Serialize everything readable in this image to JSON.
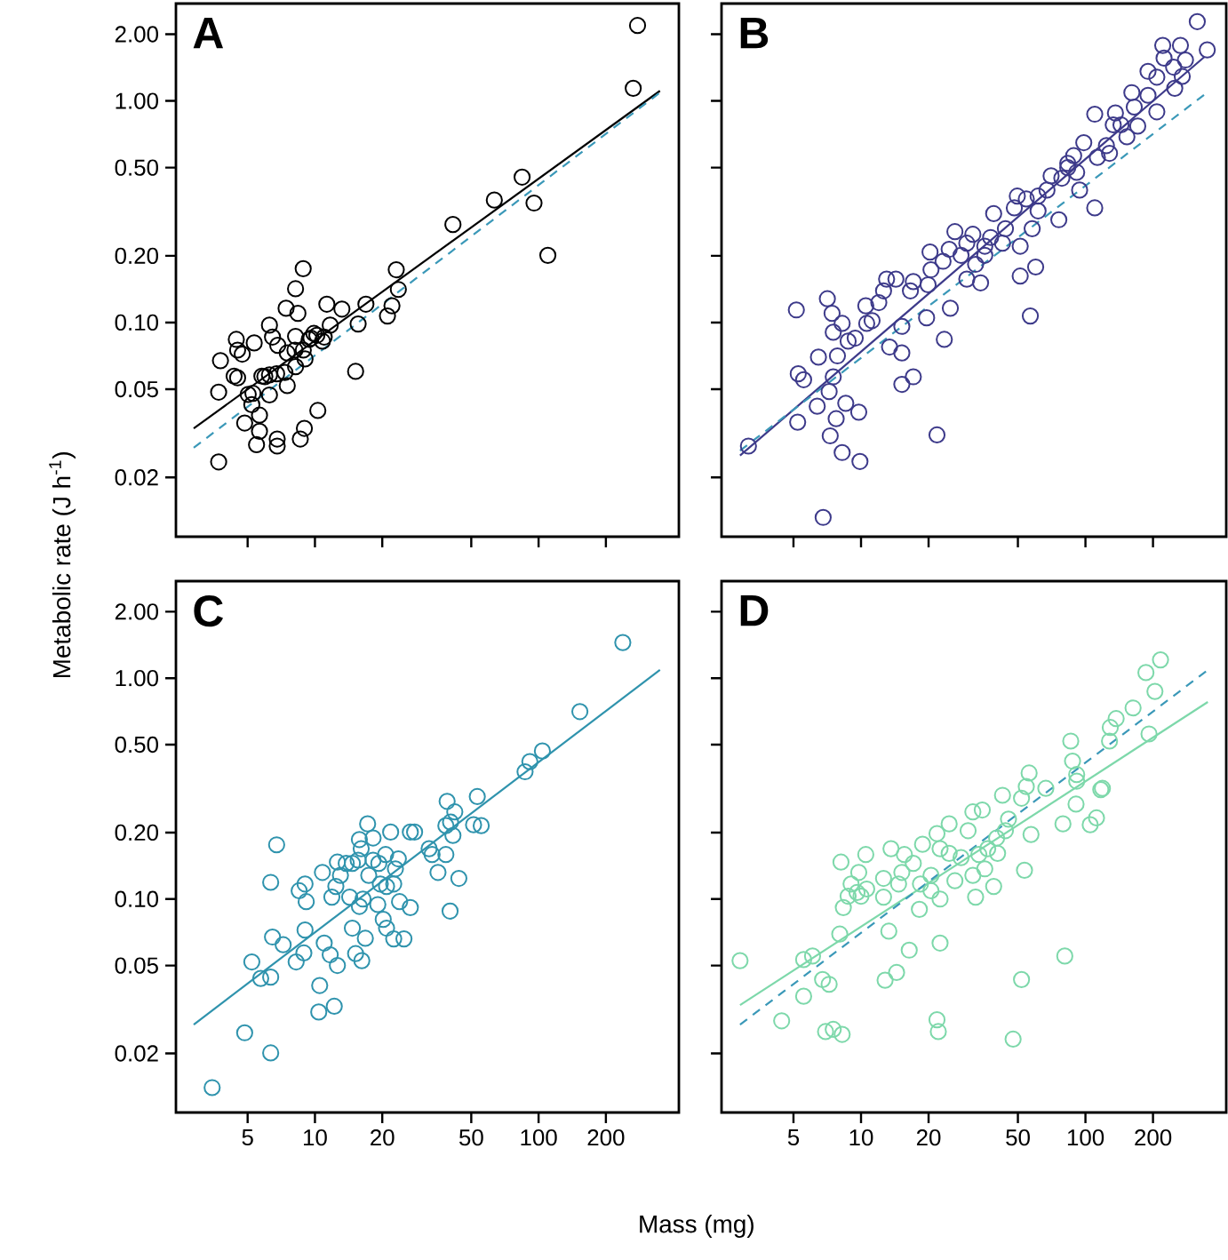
{
  "chart_data": [
    {
      "type": "scatter",
      "title": "A",
      "ylabel": "Metabolic rate (J h$^{-1}$)",
      "log": "xy",
      "marker": "circle",
      "tick_labels": "y",
      "xlim": [
        2.39,
        424
      ],
      "ylim": [
        0.0108,
        2.75
      ],
      "xticks": [
        5,
        10,
        20,
        50,
        100,
        200
      ],
      "yticks": [
        {
          "value": 2,
          "label": "2.00"
        },
        {
          "value": 1,
          "label": "1.00"
        },
        {
          "value": 0.5,
          "label": "0.50"
        },
        {
          "value": 0.2,
          "label": "0.20"
        },
        {
          "value": 0.1,
          "label": "0.10"
        },
        {
          "value": 0.05,
          "label": "0.05"
        },
        {
          "value": 0.02,
          "label": "0.02"
        }
      ],
      "series": [
        {
          "color": "#000000",
          "x": [
            277,
            265,
            84.4,
            63.4,
            95.4,
            110,
            41.4,
            23.1,
            23.6,
            22.1,
            21.1,
            16.9,
            15.6,
            13.2,
            11.3,
            8.86,
            8.19,
            7.43,
            8.39,
            11.7,
            11,
            9.89,
            9.6,
            9.03,
            8.19,
            8.14,
            6.82,
            6.26,
            6.46,
            5.35,
            4.45,
            4.51,
            4.73,
            3.78,
            4.35,
            4.51,
            5.79,
            6.26,
            6.74,
            7.34,
            8.19,
            7.52,
            6.26,
            5.28,
            3.71,
            5.22,
            5.65,
            4.85,
            5.65,
            8.97,
            10.3,
            8.6,
            6.78,
            6.78,
            5.48,
            3.71,
            15.2,
            10.8,
            10.2,
            9.42,
            7.52,
            8.87,
            5.97,
            5.03
          ],
          "values": [
            2.19,
            1.14,
            0.453,
            0.357,
            0.346,
            0.201,
            0.277,
            0.173,
            0.141,
            0.119,
            0.107,
            0.121,
            0.0985,
            0.115,
            0.121,
            0.175,
            0.142,
            0.116,
            0.11,
            0.0973,
            0.086,
            0.0893,
            0.085,
            0.0685,
            0.0866,
            0.0751,
            0.0789,
            0.0973,
            0.086,
            0.0809,
            0.0839,
            0.0751,
            0.072,
            0.0673,
            0.0573,
            0.0563,
            0.0573,
            0.058,
            0.0587,
            0.0595,
            0.0632,
            0.0519,
            0.0471,
            0.0479,
            0.0485,
            0.0426,
            0.0382,
            0.0352,
            0.0323,
            0.0333,
            0.0401,
            0.0298,
            0.0298,
            0.0277,
            0.0281,
            0.0235,
            0.0602,
            0.0824,
            0.0876,
            0.0839,
            0.0729,
            0.0751,
            0.057,
            0.0474
          ]
        },
        {
          "type": "line",
          "marker": "none",
          "line_style": "solid",
          "color": "#000000",
          "x": [
            2.87,
            349
          ],
          "values": [
            0.0333,
            1.11
          ]
        },
        {
          "type": "line",
          "marker": "none",
          "line_style": "dashed",
          "color": "#3a98b8",
          "x": [
            2.87,
            349
          ],
          "values": [
            0.0272,
            1.09
          ]
        }
      ]
    },
    {
      "type": "scatter",
      "title": "B",
      "log": "xy",
      "marker": "circle",
      "tick_labels": false,
      "xlim": [
        2.39,
        424
      ],
      "ylim": [
        0.0108,
        2.75
      ],
      "xticks": [
        5,
        10,
        20,
        50,
        100,
        200
      ],
      "yticks": [
        2,
        1,
        0.5,
        0.2,
        0.1,
        0.05,
        0.02
      ],
      "series": [
        {
          "color": "#3d3a8a",
          "x": [
            315,
            349,
            221,
            265,
            224,
            279,
            247,
            270,
            208,
            250,
            161,
            190,
            165,
            208,
            171,
            144,
            136,
            110,
            133,
            153,
            128,
            113,
            98.3,
            88.6,
            83.4,
            91.4,
            78.5,
            70.3,
            94.2,
            110,
            76.1,
            67.4,
            61.5,
            54.5,
            49.7,
            48.2,
            57.9,
            51.2,
            44,
            39,
            37.8,
            35.6,
            31.5,
            29.6,
            26.2,
            27.9,
            35.6,
            32.4,
            24.7,
            23.2,
            20.3,
            20.5,
            19.9,
            17.1,
            16.6,
            14.3,
            13,
            12.6,
            12,
            10.5,
            11.2,
            25,
            19.6,
            23.5,
            15.2,
            13.4,
            15.2,
            17.1,
            15.2,
            60,
            51.2,
            56.8,
            34.1,
            21.8,
            10.6,
            9.42,
            8.76,
            8.24,
            7.52,
            7.08,
            7.43,
            6.46,
            7.85,
            7.52,
            7.21,
            6.38,
            8.55,
            9.77,
            7.75,
            7.29,
            8.24,
            9.89,
            5.25,
            5.55,
            5.22,
            5.15,
            3.15,
            6.78,
            29.6,
            42.7,
            61.5,
            83.4,
            124,
            190
          ],
          "values": [
            2.28,
            1.7,
            1.78,
            1.78,
            1.56,
            1.53,
            1.42,
            1.29,
            1.28,
            1.14,
            1.09,
            1.06,
            0.938,
            0.893,
            0.77,
            0.78,
            0.882,
            0.871,
            0.78,
            0.689,
            0.58,
            0.556,
            0.648,
            0.566,
            0.5,
            0.476,
            0.448,
            0.459,
            0.396,
            0.329,
            0.291,
            0.396,
            0.372,
            0.361,
            0.372,
            0.329,
            0.265,
            0.221,
            0.265,
            0.31,
            0.242,
            0.221,
            0.25,
            0.228,
            0.257,
            0.201,
            0.201,
            0.183,
            0.214,
            0.189,
            0.208,
            0.173,
            0.148,
            0.153,
            0.139,
            0.157,
            0.157,
            0.139,
            0.123,
            0.119,
            0.102,
            0.116,
            0.105,
            0.0839,
            0.0961,
            0.0775,
            0.0729,
            0.0569,
            0.0526,
            0.178,
            0.162,
            0.107,
            0.151,
            0.0311,
            0.0991,
            0.085,
            0.0824,
            0.0991,
            0.0904,
            0.128,
            0.11,
            0.0698,
            0.0707,
            0.0569,
            0.0488,
            0.0419,
            0.0432,
            0.0394,
            0.0368,
            0.0308,
            0.0259,
            0.0236,
            0.0587,
            0.0552,
            0.0355,
            0.114,
            0.0277,
            0.0132,
            0.157,
            0.228,
            0.319,
            0.523,
            0.629,
            1.36
          ]
        },
        {
          "type": "line",
          "marker": "none",
          "line_style": "solid",
          "color": "#3d3a8a",
          "x": [
            2.89,
            339
          ],
          "values": [
            0.0251,
            1.58
          ]
        },
        {
          "type": "line",
          "marker": "none",
          "line_style": "dashed",
          "color": "#3a98b8",
          "x": [
            2.89,
            356
          ],
          "values": [
            0.0264,
            1.11
          ]
        }
      ]
    },
    {
      "type": "scatter",
      "title": "C",
      "xlabel": "Mass (mg)",
      "log": "xy",
      "marker": "circle",
      "xlim": [
        2.39,
        424
      ],
      "ylim": [
        0.0108,
        2.75
      ],
      "xticks": [
        5,
        10,
        20,
        50,
        100,
        200
      ],
      "yticks": [
        {
          "value": 2,
          "label": "2.00"
        },
        {
          "value": 1,
          "label": "1.00"
        },
        {
          "value": 0.5,
          "label": "0.50"
        },
        {
          "value": 0.2,
          "label": "0.20"
        },
        {
          "value": 0.1,
          "label": "0.10"
        },
        {
          "value": 0.05,
          "label": "0.05"
        },
        {
          "value": 0.02,
          "label": "0.02"
        }
      ],
      "series": [
        {
          "color": "#2f93ad",
          "x": [
            238,
            153,
            104,
            91.4,
            87,
            53.2,
            55.4,
            39,
            42.2,
            40.4,
            41.4,
            38.5,
            32.4,
            33.4,
            38.5,
            35.5,
            44,
            40.2,
            27.9,
            26.7,
            21.8,
            18.2,
            17.2,
            15.8,
            16.1,
            15.6,
            18.2,
            19.3,
            20.7,
            23.6,
            22.9,
            22.5,
            20.9,
            19.6,
            17.4,
            14.7,
            13.8,
            12.6,
            13,
            10.8,
            12.4,
            11.9,
            14.3,
            15.8,
            16.4,
            19.1,
            23.9,
            26.7,
            20.2,
            20.9,
            22.5,
            25,
            16.8,
            14.7,
            9.03,
            8.5,
            9.14,
            6.74,
            6.34,
            6.46,
            7.21,
            5.22,
            5.72,
            6.34,
            8.24,
            9.03,
            8.92,
            11,
            11.7,
            12.6,
            15.2,
            16.2,
            10.5,
            10.4,
            12.2,
            4.85,
            6.34,
            3.47,
            51.2
          ],
          "values": [
            1.45,
            0.706,
            0.468,
            0.419,
            0.377,
            0.291,
            0.215,
            0.277,
            0.248,
            0.223,
            0.194,
            0.215,
            0.169,
            0.159,
            0.159,
            0.132,
            0.124,
            0.0882,
            0.201,
            0.201,
            0.201,
            0.189,
            0.219,
            0.186,
            0.169,
            0.15,
            0.15,
            0.145,
            0.159,
            0.152,
            0.137,
            0.117,
            0.114,
            0.117,
            0.128,
            0.145,
            0.145,
            0.147,
            0.128,
            0.132,
            0.114,
            0.102,
            0.102,
            0.0926,
            0.1,
            0.0944,
            0.0973,
            0.0915,
            0.0809,
            0.0738,
            0.066,
            0.066,
            0.0664,
            0.0738,
            0.117,
            0.109,
            0.0973,
            0.176,
            0.119,
            0.0673,
            0.0621,
            0.0519,
            0.0437,
            0.0443,
            0.0519,
            0.0724,
            0.057,
            0.0632,
            0.0559,
            0.05,
            0.0566,
            0.0526,
            0.0406,
            0.0308,
            0.0327,
            0.0248,
            0.0201,
            0.014,
            0.217
          ]
        },
        {
          "type": "line",
          "marker": "none",
          "line_style": "solid",
          "color": "#2f93ad",
          "x": [
            2.87,
            349
          ],
          "values": [
            0.027,
            1.09
          ]
        }
      ]
    },
    {
      "type": "scatter",
      "title": "D",
      "log": "xy",
      "marker": "circle",
      "tick_labels": "x",
      "xlim": [
        2.39,
        424
      ],
      "ylim": [
        0.0108,
        2.75
      ],
      "xticks": [
        5,
        10,
        20,
        50,
        100,
        200
      ],
      "yticks": [
        2,
        1,
        0.5,
        0.2,
        0.1,
        0.05,
        0.02
      ],
      "series": [
        {
          "color": "#7dd8aa",
          "x": [
            216,
            186,
            204,
            192,
            163,
            137,
            129,
            128,
            86,
            87.6,
            91.4,
            119,
            117,
            90.8,
            112,
            105,
            79.4,
            66.6,
            56.1,
            54.5,
            51.9,
            42.7,
            45.4,
            44,
            40.2,
            34.7,
            31.5,
            30,
            24.7,
            21.8,
            22.5,
            24.7,
            27.9,
            33.5,
            36.7,
            40.6,
            35.6,
            31.5,
            32.4,
            39,
            26.2,
            22.5,
            20.5,
            18.4,
            17.1,
            15.6,
            15.2,
            13.6,
            12.6,
            10.5,
            9.77,
            8.14,
            9.03,
            9.6,
            10.6,
            10,
            8.76,
            8.34,
            12.6,
            14.7,
            18.2,
            20.5,
            18.8,
            13.3,
            16.4,
            22.5,
            8.04,
            6.08,
            5.55,
            6.74,
            7.21,
            5.55,
            12.8,
            14.4,
            4.43,
            6.95,
            7.52,
            8.24,
            21.8,
            22.1,
            51.9,
            47.6,
            80.9,
            53.5,
            57.2,
            2.89,
            91.4
          ],
          "values": [
            1.21,
            1.06,
            0.871,
            0.559,
            0.733,
            0.656,
            0.598,
            0.519,
            0.519,
            0.421,
            0.342,
            0.317,
            0.313,
            0.269,
            0.233,
            0.217,
            0.219,
            0.317,
            0.372,
            0.323,
            0.286,
            0.295,
            0.23,
            0.204,
            0.189,
            0.253,
            0.248,
            0.204,
            0.219,
            0.198,
            0.169,
            0.161,
            0.154,
            0.159,
            0.169,
            0.161,
            0.137,
            0.128,
            0.102,
            0.114,
            0.121,
            0.1,
            0.109,
            0.117,
            0.145,
            0.159,
            0.132,
            0.169,
            0.124,
            0.159,
            0.132,
            0.147,
            0.117,
            0.107,
            0.111,
            0.103,
            0.103,
            0.0915,
            0.102,
            0.117,
            0.0898,
            0.128,
            0.177,
            0.0715,
            0.0587,
            0.0632,
            0.0694,
            0.0552,
            0.0532,
            0.0432,
            0.0411,
            0.0363,
            0.0429,
            0.0465,
            0.0281,
            0.0251,
            0.0257,
            0.0244,
            0.0284,
            0.0251,
            0.0432,
            0.0232,
            0.0552,
            0.135,
            0.196,
            0.0526,
            0.366
          ]
        },
        {
          "type": "line",
          "marker": "none",
          "line_style": "solid",
          "color": "#7dd8aa",
          "x": [
            2.89,
            351
          ],
          "values": [
            0.0331,
            0.78
          ]
        },
        {
          "type": "line",
          "marker": "none",
          "line_style": "dashed",
          "color": "#3a98b8",
          "x": [
            2.89,
            351
          ],
          "values": [
            0.027,
            1.09
          ]
        }
      ]
    }
  ]
}
